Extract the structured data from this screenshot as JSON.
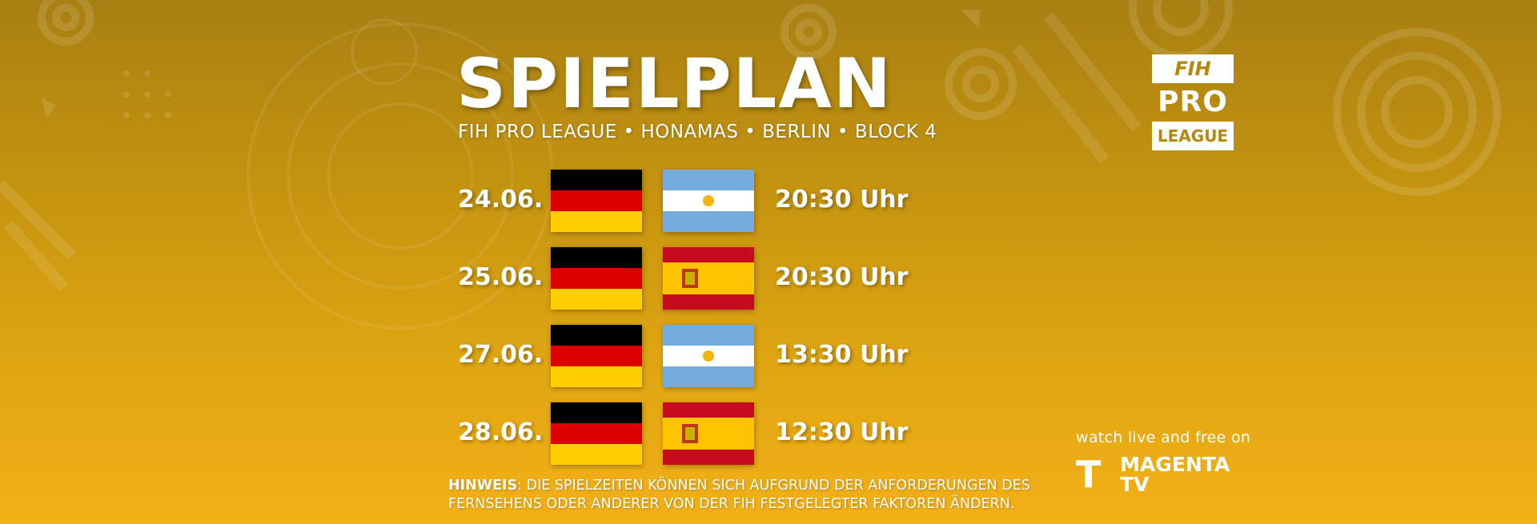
{
  "header": {
    "title": "SPIELPLAN",
    "subtitle": "FIH PRO LEAGUE • HONAMAS • BERLIN • BLOCK 4"
  },
  "logo": {
    "line1": "FIH",
    "line2": "PRO",
    "line3": "LEAGUE"
  },
  "matches": [
    {
      "date": "24.06.",
      "home_flag": "germany-flag",
      "away_flag": "argentina-flag",
      "time": "20:30 Uhr"
    },
    {
      "date": "25.06.",
      "home_flag": "germany-flag",
      "away_flag": "spain-flag",
      "time": "20:30 Uhr"
    },
    {
      "date": "27.06.",
      "home_flag": "germany-flag",
      "away_flag": "argentina-flag",
      "time": "13:30 Uhr"
    },
    {
      "date": "28.06.",
      "home_flag": "germany-flag",
      "away_flag": "spain-flag",
      "time": "12:30 Uhr"
    }
  ],
  "note": {
    "label": "HINWEIS",
    "text": ": DIE SPIELZEITEN KÖNNEN SICH AUFGRUND DER ANFORDERUNGEN DES",
    "text2": "FERNSEHENS ODER ANDERER VON DER FIH FESTGELEGTER FAKTOREN ÄNDERN."
  },
  "broadcast": {
    "watch_text": "watch live and free on",
    "brand_line1": "MAGENTA",
    "brand_line2": "TV",
    "brand_icon": "T"
  },
  "colors": {
    "background_top": "#a87f12",
    "background_bottom": "#f3b017",
    "logo_text": "#b8860b"
  }
}
